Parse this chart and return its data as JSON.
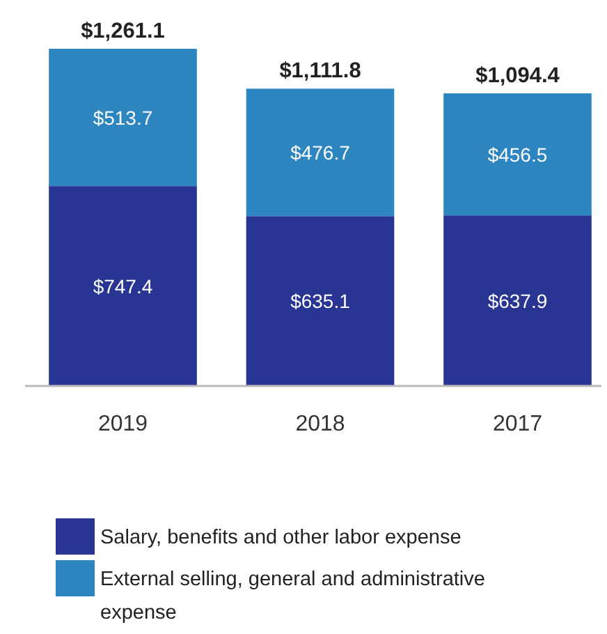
{
  "chart_data": {
    "type": "bar",
    "stacked": true,
    "categories": [
      "2019",
      "2018",
      "2017"
    ],
    "series": [
      {
        "name": "Salary, benefits and other labor expense",
        "color": "#283593",
        "values": [
          747.4,
          635.1,
          637.9
        ],
        "value_labels": [
          "$747.4",
          "$635.1",
          "$637.9"
        ]
      },
      {
        "name": "External selling, general and administrative expense",
        "color": "#2e86c1",
        "values": [
          513.7,
          476.7,
          456.5
        ],
        "value_labels": [
          "$513.7",
          "$476.7",
          "$456.5"
        ]
      }
    ],
    "totals": [
      "$1,261.1",
      "$1,111.8",
      "$1,094.4"
    ],
    "legend": "bottom",
    "grid": false
  }
}
